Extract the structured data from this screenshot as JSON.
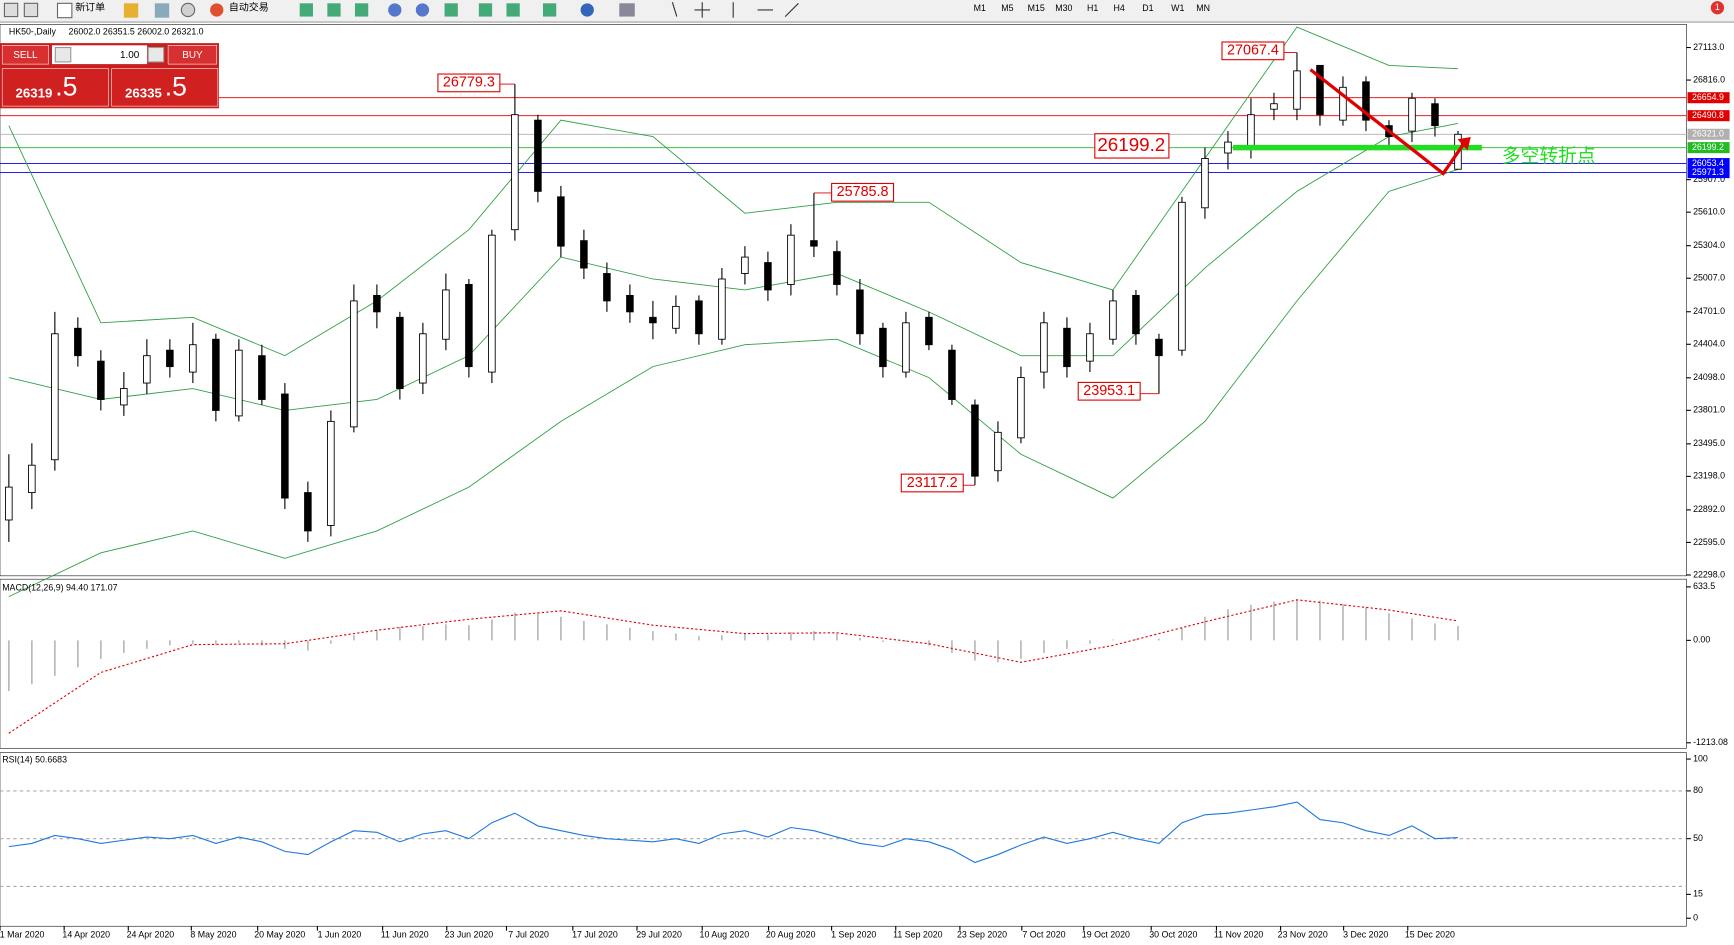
{
  "toolbar": {
    "new_order": "新订单",
    "auto_trading": "自动交易",
    "timeframes": [
      "M1",
      "M5",
      "M15",
      "M30",
      "H1",
      "H4",
      "D1",
      "W1",
      "MN"
    ],
    "alerts": "1"
  },
  "trade_panel": {
    "sell": "SELL",
    "lot": "1.00",
    "buy": "BUY",
    "sell_price": "26319",
    "sell_pips": ".5",
    "buy_price": "26335",
    "buy_pips": ".5"
  },
  "chart_data": [
    {
      "type": "candlestick",
      "title": "HK50-,Daily",
      "ohlc_text": "26002.0 26351.5 26002.0 26321.0",
      "open": [
        22800,
        23050,
        23350,
        24550,
        24250,
        23850,
        24050,
        24350,
        24150,
        24450,
        23750,
        24300,
        23950,
        23050,
        22750,
        23650,
        24850,
        24650,
        24050,
        24450,
        24950,
        24150,
        25450,
        26450,
        25750,
        25350,
        25050,
        24850,
        24650,
        24550,
        24800,
        24450,
        25050,
        25150,
        24950,
        25350,
        25250,
        24900,
        24550,
        24150,
        24650,
        24350,
        23850,
        23250,
        23550,
        24150,
        24550,
        24250,
        24450,
        24850,
        24450,
        24350,
        25650,
        26150,
        26200,
        26550,
        26550,
        26950,
        26450,
        26800,
        26400,
        26350,
        26600,
        26002
      ],
      "high": [
        23400,
        23500,
        24700,
        24650,
        24350,
        24150,
        24450,
        24450,
        24600,
        24500,
        24450,
        24400,
        24050,
        23150,
        23800,
        24950,
        24950,
        24700,
        24600,
        25050,
        25000,
        25450,
        26779.3,
        26500,
        25850,
        25450,
        25150,
        24950,
        24800,
        24850,
        24850,
        25100,
        25300,
        25250,
        25500,
        25785.8,
        25350,
        25000,
        24600,
        24700,
        24700,
        24400,
        23900,
        23700,
        24200,
        24700,
        24650,
        24600,
        24900,
        24900,
        24500,
        25750,
        26200,
        26350,
        26650,
        26700,
        27067.4,
        26950,
        26850,
        26850,
        26450,
        26700,
        26650,
        26351.5
      ],
      "low": [
        22600,
        22900,
        23250,
        24200,
        23800,
        23750,
        23950,
        24100,
        24050,
        23700,
        23700,
        23850,
        22900,
        22600,
        22650,
        23600,
        24550,
        23900,
        23950,
        24350,
        24100,
        24050,
        25350,
        25700,
        25200,
        25000,
        24700,
        24600,
        24450,
        24500,
        24400,
        24400,
        24950,
        24800,
        24850,
        25200,
        24850,
        24400,
        24100,
        24100,
        24350,
        23850,
        23117.2,
        23150,
        23500,
        24000,
        24100,
        24150,
        24400,
        24400,
        23953.1,
        24300,
        25550,
        26000,
        26100,
        26450,
        26450,
        26400,
        26400,
        26350,
        26200,
        26250,
        26300,
        26002
      ],
      "close": [
        23100,
        23300,
        24500,
        24300,
        23900,
        24000,
        24300,
        24200,
        24400,
        23800,
        24350,
        23900,
        23000,
        22700,
        23700,
        24800,
        24700,
        24000,
        24500,
        24900,
        24200,
        25400,
        26500,
        25800,
        25300,
        25100,
        24800,
        24700,
        24600,
        24750,
        24500,
        25000,
        25200,
        24900,
        25400,
        25300,
        24950,
        24500,
        24200,
        24600,
        24400,
        23900,
        23200,
        23600,
        24100,
        24600,
        24200,
        24500,
        24800,
        24500,
        24300,
        25700,
        26100,
        26250,
        26500,
        26600,
        26900,
        26500,
        26750,
        26450,
        26300,
        26650,
        26400,
        26321
      ],
      "band_x": [
        0,
        4,
        8,
        12,
        16,
        20,
        24,
        28,
        32,
        36,
        40,
        44,
        48,
        52,
        56,
        60,
        63
      ],
      "bands": [
        {
          "color": "#2ea043",
          "values": [
            26400,
            24600,
            24650,
            24300,
            24800,
            25450,
            26450,
            26300,
            25600,
            25700,
            25700,
            25150,
            24900,
            26100,
            27300,
            26950,
            26920
          ]
        },
        {
          "color": "#2ea043",
          "values": [
            24100,
            23900,
            24000,
            23800,
            23900,
            24300,
            25200,
            25000,
            24900,
            25050,
            24700,
            24300,
            24300,
            25100,
            25800,
            26300,
            26420
          ]
        },
        {
          "color": "#2ea043",
          "values": [
            22100,
            22500,
            22700,
            22450,
            22700,
            23100,
            23700,
            24200,
            24400,
            24450,
            24100,
            23400,
            23000,
            23700,
            24800,
            25800,
            26000
          ]
        }
      ],
      "ylim": [
        22290,
        27325
      ],
      "yticks": [
        {
          "value": 27113,
          "label": "27113.0"
        },
        {
          "value": 26816,
          "label": "26816.0"
        },
        {
          "value": 25907,
          "label": "25907.0"
        },
        {
          "value": 25610,
          "label": "25610.0"
        },
        {
          "value": 25304,
          "label": "25304.0"
        },
        {
          "value": 25007,
          "label": "25007.0"
        },
        {
          "value": 24701,
          "label": "24701.0"
        },
        {
          "value": 24404,
          "label": "24404.0"
        },
        {
          "value": 24098,
          "label": "24098.0"
        },
        {
          "value": 23801,
          "label": "23801.0"
        },
        {
          "value": 23495,
          "label": "23495.0"
        },
        {
          "value": 23198,
          "label": "23198.0"
        },
        {
          "value": 22892,
          "label": "22892.0"
        },
        {
          "value": 22595,
          "label": "22595.0"
        },
        {
          "value": 22298,
          "label": "22298.0"
        }
      ],
      "hlines": [
        {
          "value": 26654.9,
          "color": "#e00000"
        },
        {
          "value": 26490.8,
          "color": "#e00000"
        },
        {
          "value": 26321,
          "label": "26321.0",
          "color": "#b0b0b0"
        },
        {
          "value": 26199.2,
          "color": "#22bb22"
        },
        {
          "value": 26053.4,
          "color": "#0000ff"
        },
        {
          "value": 25971.3,
          "color": "#0000ff"
        }
      ],
      "annotations": [
        {
          "value": 26779.3,
          "index": 22
        },
        {
          "value": 27067.4,
          "index": 56
        },
        {
          "value": 25785.8,
          "index": 35
        },
        {
          "value": 23953.1,
          "index": 50
        },
        {
          "value": 23117.2,
          "index": 42
        }
      ],
      "key_level": {
        "value": 26199.2,
        "note": "多空转折点"
      },
      "date_labels": [
        "1 Mar 2020",
        "14 Apr 2020",
        "24 Apr 2020",
        "8 May 2020",
        "20 May 2020",
        "1 Jun 2020",
        "11 Jun 2020",
        "23 Jun 2020",
        "7 Jul 2020",
        "17 Jul 2020",
        "29 Jul 2020",
        "10 Aug 2020",
        "20 Aug 2020",
        "1 Sep 2020",
        "11 Sep 2020",
        "23 Sep 2020",
        "7 Oct 2020",
        "19 Oct 2020",
        "30 Oct 2020",
        "11 Nov 2020",
        "23 Nov 2020",
        "3 Dec 2020",
        "15 Dec 2020"
      ]
    },
    {
      "type": "macd",
      "title": "MACD(12,26,9) 94.40 171.07",
      "values": [
        -600,
        -520,
        -420,
        -320,
        -220,
        -150,
        -100,
        -60,
        -40,
        -50,
        -30,
        -60,
        -100,
        -120,
        -40,
        60,
        120,
        160,
        170,
        190,
        180,
        250,
        330,
        320,
        280,
        230,
        190,
        150,
        110,
        80,
        50,
        60,
        80,
        70,
        100,
        110,
        80,
        30,
        -20,
        -20,
        -60,
        -150,
        -240,
        -260,
        -220,
        -150,
        -100,
        -40,
        10,
        20,
        20,
        150,
        280,
        370,
        420,
        460,
        480,
        470,
        430,
        390,
        320,
        260,
        200,
        170
      ],
      "signal_x": [
        0,
        4,
        8,
        12,
        16,
        20,
        24,
        28,
        32,
        36,
        40,
        44,
        48,
        52,
        56,
        60,
        63
      ],
      "signal": [
        -1100,
        -380,
        -50,
        -40,
        120,
        250,
        350,
        180,
        80,
        90,
        -40,
        -260,
        -60,
        220,
        480,
        360,
        230
      ],
      "ylim": [
        -1278,
        725
      ],
      "yticks": [
        633.5,
        {
          "value": 0,
          "label": "0.00"
        },
        -1213.08
      ]
    },
    {
      "type": "line",
      "title": "RSI(14) 50.6683",
      "color": "#1e78dc",
      "values": [
        45,
        47,
        52,
        50,
        47,
        49,
        51,
        50,
        52,
        47,
        51,
        48,
        42,
        40,
        48,
        55,
        54,
        48,
        53,
        55,
        50,
        60,
        66,
        58,
        55,
        52,
        50,
        49,
        48,
        50,
        47,
        53,
        55,
        51,
        57,
        55,
        51,
        47,
        45,
        50,
        48,
        43,
        35,
        40,
        46,
        51,
        47,
        50,
        54,
        50,
        47,
        60,
        65,
        66,
        68,
        70,
        73,
        62,
        60,
        55,
        52,
        58,
        50,
        50.6683
      ],
      "ylim": [
        -5,
        104
      ],
      "yticks": [
        100,
        80,
        50,
        15,
        0
      ],
      "levels": [
        80,
        50,
        20
      ]
    }
  ]
}
